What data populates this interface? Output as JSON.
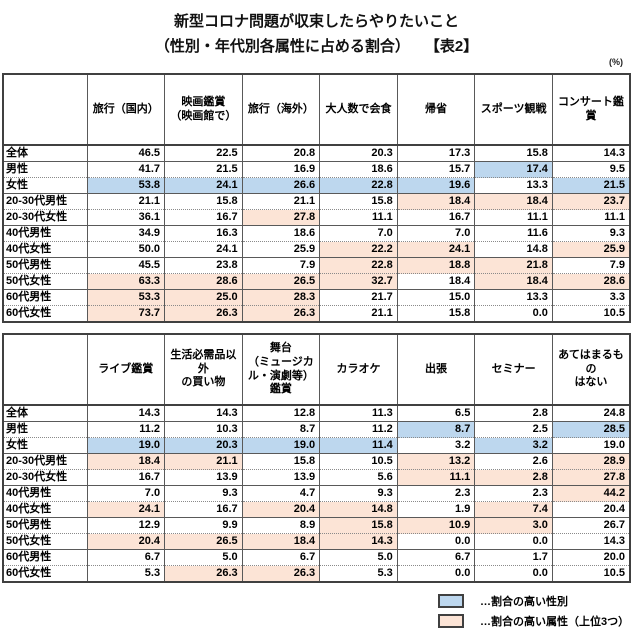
{
  "page": {
    "title_line1": "新型コロナ問題が収束したらやりたいこと",
    "title_line2": "（性別・年代別各属性に占める割合）　　【表2】",
    "unit_label": "(%)"
  },
  "colors": {
    "highlight_blue": "#bdd7ee",
    "highlight_pink": "#fce4d6"
  },
  "table1": {
    "columns": [
      "旅行（国内）",
      "映画鑑賞\n（映画館で）",
      "旅行（海外）",
      "大人数で会食",
      "帰省",
      "スポーツ観戦",
      "コンサート鑑賞"
    ],
    "rows": [
      {
        "label": "全体",
        "sep": "solid",
        "values": [
          "46.5",
          "22.5",
          "20.8",
          "20.3",
          "17.3",
          "15.8",
          "14.3"
        ],
        "hl": [
          "",
          "",
          "",
          "",
          "",
          "",
          ""
        ]
      },
      {
        "label": "男性",
        "sep": "dot",
        "values": [
          "41.7",
          "21.5",
          "16.9",
          "18.6",
          "15.7",
          "17.4",
          "9.5"
        ],
        "hl": [
          "",
          "",
          "",
          "",
          "",
          "blue",
          ""
        ]
      },
      {
        "label": "女性",
        "sep": "solid",
        "values": [
          "53.8",
          "24.1",
          "26.6",
          "22.8",
          "19.6",
          "13.3",
          "21.5"
        ],
        "hl": [
          "blue",
          "blue",
          "blue",
          "blue",
          "blue",
          "",
          "blue"
        ]
      },
      {
        "label": "20-30代男性",
        "sep": "dot",
        "values": [
          "21.1",
          "15.8",
          "21.1",
          "15.8",
          "18.4",
          "18.4",
          "23.7"
        ],
        "hl": [
          "",
          "",
          "",
          "",
          "pink",
          "pink",
          "pink"
        ]
      },
      {
        "label": "20-30代女性",
        "sep": "solid",
        "values": [
          "36.1",
          "16.7",
          "27.8",
          "11.1",
          "16.7",
          "11.1",
          "11.1"
        ],
        "hl": [
          "",
          "",
          "pink",
          "",
          "",
          "",
          ""
        ]
      },
      {
        "label": "40代男性",
        "sep": "dot",
        "values": [
          "34.9",
          "16.3",
          "18.6",
          "7.0",
          "7.0",
          "11.6",
          "9.3"
        ],
        "hl": [
          "",
          "",
          "",
          "",
          "",
          "",
          ""
        ]
      },
      {
        "label": "40代女性",
        "sep": "solid",
        "values": [
          "50.0",
          "24.1",
          "25.9",
          "22.2",
          "24.1",
          "14.8",
          "25.9"
        ],
        "hl": [
          "",
          "",
          "",
          "pink",
          "pink",
          "",
          "pink"
        ]
      },
      {
        "label": "50代男性",
        "sep": "dot",
        "values": [
          "45.5",
          "23.8",
          "7.9",
          "22.8",
          "18.8",
          "21.8",
          "7.9"
        ],
        "hl": [
          "",
          "",
          "",
          "pink",
          "pink",
          "pink",
          ""
        ]
      },
      {
        "label": "50代女性",
        "sep": "solid",
        "values": [
          "63.3",
          "28.6",
          "26.5",
          "32.7",
          "18.4",
          "18.4",
          "28.6"
        ],
        "hl": [
          "pink",
          "pink",
          "pink",
          "pink",
          "",
          "pink",
          "pink"
        ]
      },
      {
        "label": "60代男性",
        "sep": "dot",
        "values": [
          "53.3",
          "25.0",
          "28.3",
          "21.7",
          "15.0",
          "13.3",
          "3.3"
        ],
        "hl": [
          "pink",
          "pink",
          "pink",
          "",
          "",
          "",
          ""
        ]
      },
      {
        "label": "60代女性",
        "sep": "none",
        "values": [
          "73.7",
          "26.3",
          "26.3",
          "21.1",
          "15.8",
          "0.0",
          "10.5"
        ],
        "hl": [
          "pink",
          "pink",
          "pink",
          "",
          "",
          "",
          ""
        ]
      }
    ]
  },
  "table2": {
    "columns": [
      "ライブ鑑賞",
      "生活必需品以外\nの買い物",
      "舞台\n（ミュージカ\nル・演劇等）\n鑑賞",
      "カラオケ",
      "出張",
      "セミナー",
      "あてはまるもの\nはない"
    ],
    "rows": [
      {
        "label": "全体",
        "sep": "solid",
        "values": [
          "14.3",
          "14.3",
          "12.8",
          "11.3",
          "6.5",
          "2.8",
          "24.8"
        ],
        "hl": [
          "",
          "",
          "",
          "",
          "",
          "",
          ""
        ]
      },
      {
        "label": "男性",
        "sep": "dot",
        "values": [
          "11.2",
          "10.3",
          "8.7",
          "11.2",
          "8.7",
          "2.5",
          "28.5"
        ],
        "hl": [
          "",
          "",
          "",
          "",
          "blue",
          "",
          "blue"
        ]
      },
      {
        "label": "女性",
        "sep": "solid",
        "values": [
          "19.0",
          "20.3",
          "19.0",
          "11.4",
          "3.2",
          "3.2",
          "19.0"
        ],
        "hl": [
          "blue",
          "blue",
          "blue",
          "blue",
          "",
          "blue",
          ""
        ]
      },
      {
        "label": "20-30代男性",
        "sep": "dot",
        "values": [
          "18.4",
          "21.1",
          "15.8",
          "10.5",
          "13.2",
          "2.6",
          "28.9"
        ],
        "hl": [
          "pink",
          "pink",
          "",
          "",
          "pink",
          "",
          "pink"
        ]
      },
      {
        "label": "20-30代女性",
        "sep": "solid",
        "values": [
          "16.7",
          "13.9",
          "13.9",
          "5.6",
          "11.1",
          "2.8",
          "27.8"
        ],
        "hl": [
          "",
          "",
          "",
          "",
          "pink",
          "pink",
          "pink"
        ]
      },
      {
        "label": "40代男性",
        "sep": "dot",
        "values": [
          "7.0",
          "9.3",
          "4.7",
          "9.3",
          "2.3",
          "2.3",
          "44.2"
        ],
        "hl": [
          "",
          "",
          "",
          "",
          "",
          "",
          "pink"
        ]
      },
      {
        "label": "40代女性",
        "sep": "solid",
        "values": [
          "24.1",
          "16.7",
          "20.4",
          "14.8",
          "1.9",
          "7.4",
          "20.4"
        ],
        "hl": [
          "pink",
          "",
          "pink",
          "pink",
          "",
          "pink",
          ""
        ]
      },
      {
        "label": "50代男性",
        "sep": "dot",
        "values": [
          "12.9",
          "9.9",
          "8.9",
          "15.8",
          "10.9",
          "3.0",
          "26.7"
        ],
        "hl": [
          "",
          "",
          "",
          "pink",
          "pink",
          "pink",
          ""
        ]
      },
      {
        "label": "50代女性",
        "sep": "solid",
        "values": [
          "20.4",
          "26.5",
          "18.4",
          "14.3",
          "0.0",
          "0.0",
          "14.3"
        ],
        "hl": [
          "pink",
          "pink",
          "pink",
          "pink",
          "",
          "",
          ""
        ]
      },
      {
        "label": "60代男性",
        "sep": "dot",
        "values": [
          "6.7",
          "5.0",
          "6.7",
          "5.0",
          "6.7",
          "1.7",
          "20.0"
        ],
        "hl": [
          "",
          "",
          "",
          "",
          "",
          "",
          ""
        ]
      },
      {
        "label": "60代女性",
        "sep": "none",
        "values": [
          "5.3",
          "26.3",
          "26.3",
          "5.3",
          "0.0",
          "0.0",
          "10.5"
        ],
        "hl": [
          "",
          "pink",
          "pink",
          "",
          "",
          "",
          ""
        ]
      }
    ]
  },
  "legend": {
    "items": [
      {
        "color_key": "highlight_blue",
        "label": "…割合の高い性別"
      },
      {
        "color_key": "highlight_pink",
        "label": "…割合の高い属性（上位3つ）"
      }
    ]
  }
}
